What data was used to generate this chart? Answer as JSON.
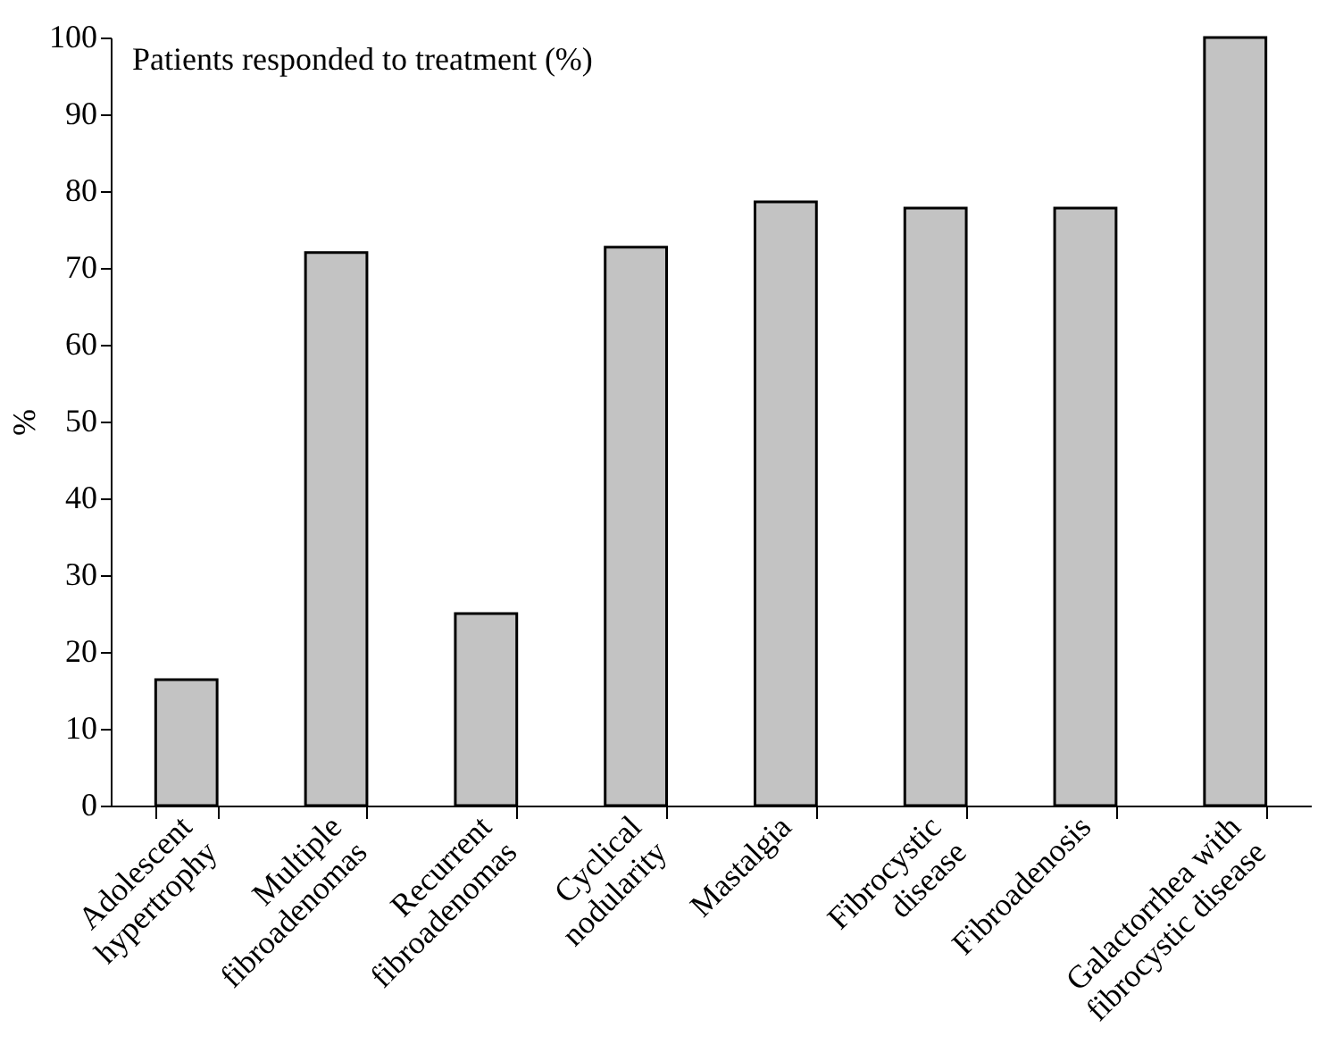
{
  "chart_data": {
    "type": "bar",
    "title": "Patients responded to treatment (%)",
    "ylabel": "%",
    "categories": [
      "Adolescent\nhypertrophy",
      "Multiple\nfibroadenomas",
      "Recurrent\nfibroadenomas",
      "Cyclical\nnodularity",
      "Mastalgia",
      "Fibrocystic\ndisease",
      "Fibroadenosis",
      "Galactorrhea with\nfibrocystic disease"
    ],
    "values": [
      16.4,
      72,
      25,
      72.7,
      78.6,
      77.8,
      77.8,
      100
    ],
    "color": "#c3c3c3",
    "ylim": [
      0,
      100
    ],
    "yticks": [
      0,
      10,
      20,
      30,
      40,
      50,
      60,
      70,
      80,
      90,
      100
    ],
    "grid": false
  }
}
